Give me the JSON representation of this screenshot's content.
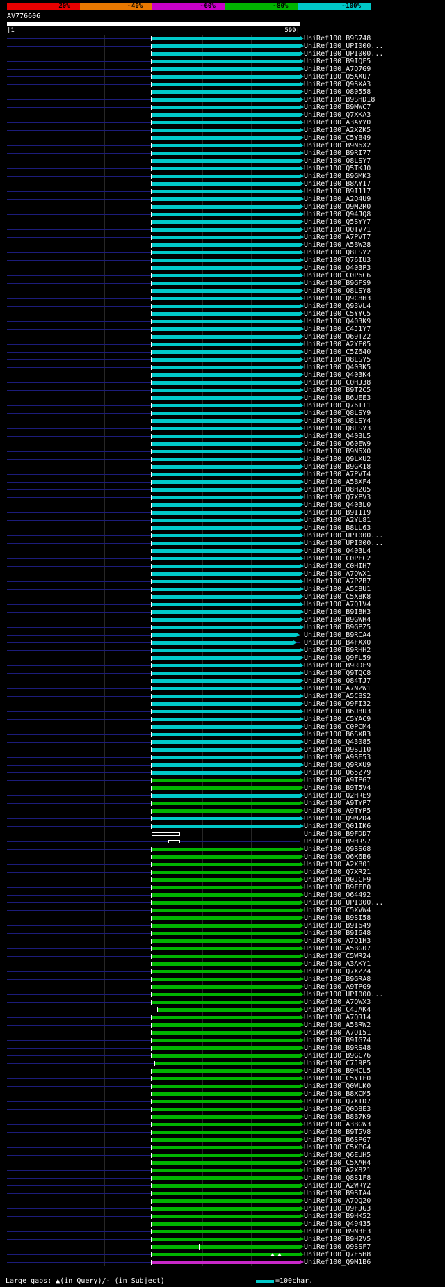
{
  "header": {
    "query_name": "AV776606",
    "start_label": "|1",
    "end_label": "599|"
  },
  "footer": {
    "gaps_note": "Large gaps: ▲(in Query)/- (in Subject)",
    "legend_label": "=100char."
  },
  "colors": {
    "cyan": "#00C8C8",
    "green": "#00B400",
    "magenta": "#C828C8",
    "navy": "#1C1C7A",
    "query_bar": "#FFFFFF",
    "grid": "#262626"
  },
  "chart_data": {
    "type": "bar",
    "title": "AV776606 alignment hit overview",
    "query": {
      "name": "AV776606",
      "start": 1,
      "end": 599,
      "length": 599
    },
    "identity_scale": [
      {
        "label": "20%",
        "color": "#E80000"
      },
      {
        "label": "~40%",
        "color": "#E87800"
      },
      {
        "label": "~60%",
        "color": "#C800C8"
      },
      {
        "label": "~80%",
        "color": "#00B400"
      },
      {
        "label": "~100%",
        "color": "#00C8C8"
      }
    ],
    "grid_coords": [
      100,
      200,
      300,
      400,
      500
    ],
    "defaults": {
      "from": 296,
      "to": 599
    },
    "legend_unit_chars": 100,
    "hits": [
      {
        "label": "UniRef100_B9S748",
        "color": "cyan"
      },
      {
        "label": "UniRef100_UPI000...",
        "color": "cyan"
      },
      {
        "label": "UniRef100_UPI000...",
        "color": "cyan"
      },
      {
        "label": "UniRef100_B9IQF5",
        "color": "cyan"
      },
      {
        "label": "UniRef100_A7Q7G9",
        "color": "cyan"
      },
      {
        "label": "UniRef100_Q5AXU7",
        "color": "cyan"
      },
      {
        "label": "UniRef100_Q9SXA3",
        "color": "cyan"
      },
      {
        "label": "UniRef100_O80558",
        "color": "cyan"
      },
      {
        "label": "UniRef100_B9SHD18",
        "color": "cyan"
      },
      {
        "label": "UniRef100_B9MWC7",
        "color": "cyan"
      },
      {
        "label": "UniRef100_Q7XKA3",
        "color": "cyan"
      },
      {
        "label": "UniRef100_A3AYY0",
        "color": "cyan"
      },
      {
        "label": "UniRef100_A2XZK5",
        "color": "cyan"
      },
      {
        "label": "UniRef100_C5YB49",
        "color": "cyan"
      },
      {
        "label": "UniRef100_B9N6X2",
        "color": "cyan"
      },
      {
        "label": "UniRef100_B9RI77",
        "color": "cyan"
      },
      {
        "label": "UniRef100_Q8LSY7",
        "color": "cyan"
      },
      {
        "label": "UniRef100_Q5TKJ0",
        "color": "cyan"
      },
      {
        "label": "UniRef100_B9GMK3",
        "color": "cyan"
      },
      {
        "label": "UniRef100_B8AY17",
        "color": "cyan"
      },
      {
        "label": "UniRef100_B9I117",
        "color": "cyan"
      },
      {
        "label": "UniRef100_A2Q4U9",
        "color": "cyan"
      },
      {
        "label": "UniRef100_Q9M2R0",
        "color": "cyan"
      },
      {
        "label": "UniRef100_Q94JQ8",
        "color": "cyan"
      },
      {
        "label": "UniRef100_Q5SYY7",
        "color": "cyan"
      },
      {
        "label": "UniRef100_Q0TV71",
        "color": "cyan"
      },
      {
        "label": "UniRef100_A7PVT7",
        "color": "cyan"
      },
      {
        "label": "UniRef100_A5BW28",
        "color": "cyan"
      },
      {
        "label": "UniRef100_Q8LSY2",
        "color": "cyan"
      },
      {
        "label": "UniRef100_Q76IU3",
        "color": "cyan"
      },
      {
        "label": "UniRef100_Q403P3",
        "color": "cyan"
      },
      {
        "label": "UniRef100_C0P6C6",
        "color": "cyan"
      },
      {
        "label": "UniRef100_B9GFS9",
        "color": "cyan"
      },
      {
        "label": "UniRef100_Q8LSY8",
        "color": "cyan"
      },
      {
        "label": "UniRef100_Q9C8H3",
        "color": "cyan"
      },
      {
        "label": "UniRef100_Q93VL4",
        "color": "cyan"
      },
      {
        "label": "UniRef100_C5YYC5",
        "color": "cyan"
      },
      {
        "label": "UniRef100_Q403K9",
        "color": "cyan"
      },
      {
        "label": "UniRef100_C4J1Y7",
        "color": "cyan"
      },
      {
        "label": "UniRef100_Q69TZ2",
        "color": "cyan"
      },
      {
        "label": "UniRef100_A2YF05",
        "color": "cyan"
      },
      {
        "label": "UniRef100_C5Z640",
        "color": "cyan"
      },
      {
        "label": "UniRef100_Q8LSY5",
        "color": "cyan"
      },
      {
        "label": "UniRef100_Q403K5",
        "color": "cyan"
      },
      {
        "label": "UniRef100_Q403K4",
        "color": "cyan"
      },
      {
        "label": "UniRef100_C0HJ38",
        "color": "cyan"
      },
      {
        "label": "UniRef100_B9T2C5",
        "color": "cyan"
      },
      {
        "label": "UniRef100_B6UEE3",
        "color": "cyan"
      },
      {
        "label": "UniRef100_Q76IT1",
        "color": "cyan"
      },
      {
        "label": "UniRef100_Q8LSY9",
        "color": "cyan"
      },
      {
        "label": "UniRef100_Q8LSY4",
        "color": "cyan"
      },
      {
        "label": "UniRef100_Q8LSY3",
        "color": "cyan"
      },
      {
        "label": "UniRef100_Q403L5",
        "color": "cyan"
      },
      {
        "label": "UniRef100_Q60EW9",
        "color": "cyan"
      },
      {
        "label": "UniRef100_B9N6X0",
        "color": "cyan"
      },
      {
        "label": "UniRef100_Q9LXU2",
        "color": "cyan"
      },
      {
        "label": "UniRef100_B9GK18",
        "color": "cyan"
      },
      {
        "label": "UniRef100_A7PVT4",
        "color": "cyan"
      },
      {
        "label": "UniRef100_A5BXF4",
        "color": "cyan"
      },
      {
        "label": "UniRef100_Q8H2Q5",
        "color": "cyan"
      },
      {
        "label": "UniRef100_Q7XPV3",
        "color": "cyan"
      },
      {
        "label": "UniRef100_Q403L0",
        "color": "cyan"
      },
      {
        "label": "UniRef100_B9I1I9",
        "color": "cyan"
      },
      {
        "label": "UniRef100_A2YL81",
        "color": "cyan"
      },
      {
        "label": "UniRef100_B8LL63",
        "color": "cyan"
      },
      {
        "label": "UniRef100_UPI000...",
        "color": "cyan"
      },
      {
        "label": "UniRef100_UPI000...",
        "color": "cyan"
      },
      {
        "label": "UniRef100_Q403L4",
        "color": "cyan"
      },
      {
        "label": "UniRef100_C0PFC2",
        "color": "cyan"
      },
      {
        "label": "UniRef100_C0HIH7",
        "color": "cyan"
      },
      {
        "label": "UniRef100_A7QWX1",
        "color": "cyan"
      },
      {
        "label": "UniRef100_A7PZB7",
        "color": "cyan"
      },
      {
        "label": "UniRef100_A5C8U1",
        "color": "cyan"
      },
      {
        "label": "UniRef100_C5X8K8",
        "color": "cyan"
      },
      {
        "label": "UniRef100_A7Q1V4",
        "color": "cyan"
      },
      {
        "label": "UniRef100_B9I8H3",
        "color": "cyan"
      },
      {
        "label": "UniRef100_B9GWH4",
        "color": "cyan"
      },
      {
        "label": "UniRef100_B9GPZ5",
        "color": "cyan"
      },
      {
        "label": "UniRef100_B9RCA4",
        "color": "cyan",
        "to": 590
      },
      {
        "label": "UniRef100_B4FXX0",
        "color": "cyan",
        "to": 585
      },
      {
        "label": "UniRef100_B9RHH2",
        "color": "cyan"
      },
      {
        "label": "UniRef100_Q9FL59",
        "color": "cyan"
      },
      {
        "label": "UniRef100_B9RDF9",
        "color": "cyan"
      },
      {
        "label": "UniRef100_Q9TQC8",
        "color": "cyan"
      },
      {
        "label": "UniRef100_Q84TJ7",
        "color": "cyan"
      },
      {
        "label": "UniRef100_A7NZW1",
        "color": "cyan"
      },
      {
        "label": "UniRef100_A5CBS2",
        "color": "cyan"
      },
      {
        "label": "UniRef100_Q9FI32",
        "color": "cyan"
      },
      {
        "label": "UniRef100_B6U8U3",
        "color": "cyan"
      },
      {
        "label": "UniRef100_C5YAC9",
        "color": "cyan"
      },
      {
        "label": "UniRef100_C0PCM4",
        "color": "cyan"
      },
      {
        "label": "UniRef100_B6SXR3",
        "color": "cyan"
      },
      {
        "label": "UniRef100_Q43085",
        "color": "cyan"
      },
      {
        "label": "UniRef100_Q9SU10",
        "color": "cyan"
      },
      {
        "label": "UniRef100_A9SE53",
        "color": "cyan"
      },
      {
        "label": "UniRef100_Q9RXU9",
        "color": "cyan"
      },
      {
        "label": "UniRef100_Q65Z79",
        "color": "cyan"
      },
      {
        "label": "UniRef100_A9TPG7",
        "color": "green"
      },
      {
        "label": "UniRef100_B9T5V4",
        "color": "green"
      },
      {
        "label": "UniRef100_Q2HRE9",
        "color": "cyan"
      },
      {
        "label": "UniRef100_A9TYP7",
        "color": "green"
      },
      {
        "label": "UniRef100_A9TYP5",
        "color": "green"
      },
      {
        "label": "UniRef100_Q9M2D4",
        "color": "cyan"
      },
      {
        "label": "UniRef100_Q01IK6",
        "color": "cyan"
      },
      {
        "label": "UniRef100_B9FDD7",
        "color": "outline",
        "from": 296,
        "to": 352
      },
      {
        "label": "UniRef100_B9HRS7",
        "color": "outline",
        "from": 330,
        "to": 352
      },
      {
        "label": "UniRef100_Q9SS68",
        "color": "green"
      },
      {
        "label": "UniRef100_Q6K6B6",
        "color": "green"
      },
      {
        "label": "UniRef100_A2XB01",
        "color": "green"
      },
      {
        "label": "UniRef100_Q7XR21",
        "color": "green"
      },
      {
        "label": "UniRef100_Q0JCF9",
        "color": "green"
      },
      {
        "label": "UniRef100_B9FFP0",
        "color": "green"
      },
      {
        "label": "UniRef100_O64492",
        "color": "green"
      },
      {
        "label": "UniRef100_UPI000...",
        "color": "green"
      },
      {
        "label": "UniRef100_C5XVW4",
        "color": "green"
      },
      {
        "label": "UniRef100_B9SI58",
        "color": "green"
      },
      {
        "label": "UniRef100_B9I649",
        "color": "green"
      },
      {
        "label": "UniRef100_B9I648",
        "color": "green"
      },
      {
        "label": "UniRef100_A7Q1H3",
        "color": "green"
      },
      {
        "label": "UniRef100_A5BG07",
        "color": "green"
      },
      {
        "label": "UniRef100_C5WR24",
        "color": "green"
      },
      {
        "label": "UniRef100_A3AKY1",
        "color": "green"
      },
      {
        "label": "UniRef100_Q7XZZ4",
        "color": "green"
      },
      {
        "label": "UniRef100_B9GRA8",
        "color": "green"
      },
      {
        "label": "UniRef100_A9TPG9",
        "color": "green"
      },
      {
        "label": "UniRef100_UPI000...",
        "color": "green"
      },
      {
        "label": "UniRef100_A7QWX3",
        "color": "green"
      },
      {
        "label": "UniRef100_C4JAK4",
        "color": "green",
        "from": 309
      },
      {
        "label": "UniRef100_A7QR14",
        "color": "green"
      },
      {
        "label": "UniRef100_A5BRW2",
        "color": "green"
      },
      {
        "label": "UniRef100_A7QI51",
        "color": "green"
      },
      {
        "label": "UniRef100_B9IG74",
        "color": "green"
      },
      {
        "label": "UniRef100_B9RS48",
        "color": "green"
      },
      {
        "label": "UniRef100_B9GC76",
        "color": "green"
      },
      {
        "label": "UniRef100_C7J9P5",
        "color": "green",
        "from": 303
      },
      {
        "label": "UniRef100_B9HCL5",
        "color": "green"
      },
      {
        "label": "UniRef100_C5Y1F0",
        "color": "green"
      },
      {
        "label": "UniRef100_Q0WLK0",
        "color": "green"
      },
      {
        "label": "UniRef100_B8XCM5",
        "color": "green"
      },
      {
        "label": "UniRef100_Q7XID7",
        "color": "green"
      },
      {
        "label": "UniRef100_Q0D8E3",
        "color": "green"
      },
      {
        "label": "UniRef100_B8B7K9",
        "color": "green"
      },
      {
        "label": "UniRef100_A3BGW3",
        "color": "green"
      },
      {
        "label": "UniRef100_B9T5V8",
        "color": "green"
      },
      {
        "label": "UniRef100_B6SPG7",
        "color": "green"
      },
      {
        "label": "UniRef100_C5XPG4",
        "color": "green"
      },
      {
        "label": "UniRef100_Q6EUH5",
        "color": "green"
      },
      {
        "label": "UniRef100_C5XAH4",
        "color": "green"
      },
      {
        "label": "UniRef100_A2X821",
        "color": "green"
      },
      {
        "label": "UniRef100_Q8S1F8",
        "color": "green"
      },
      {
        "label": "UniRef100_A2WRY2",
        "color": "green"
      },
      {
        "label": "UniRef100_B9SIA4",
        "color": "green"
      },
      {
        "label": "UniRef100_A7QQ20",
        "color": "green"
      },
      {
        "label": "UniRef100_Q9FJG3",
        "color": "green"
      },
      {
        "label": "UniRef100_B9HK52",
        "color": "green"
      },
      {
        "label": "UniRef100_Q49435",
        "color": "green"
      },
      {
        "label": "UniRef100_B9N3F3",
        "color": "green"
      },
      {
        "label": "UniRef100_B9H2V5",
        "color": "green"
      },
      {
        "label": "UniRef100_Q9SSF7",
        "color": "green",
        "ticks": [
          {
            "at": 393,
            "kind": "bar"
          }
        ]
      },
      {
        "label": "UniRef100_Q7E5H8",
        "color": "green",
        "ticks": [
          {
            "at": 540,
            "kind": "tri"
          },
          {
            "at": 554,
            "kind": "tri"
          }
        ]
      },
      {
        "label": "UniRef100_Q9M1B6",
        "color": "magenta"
      }
    ]
  }
}
